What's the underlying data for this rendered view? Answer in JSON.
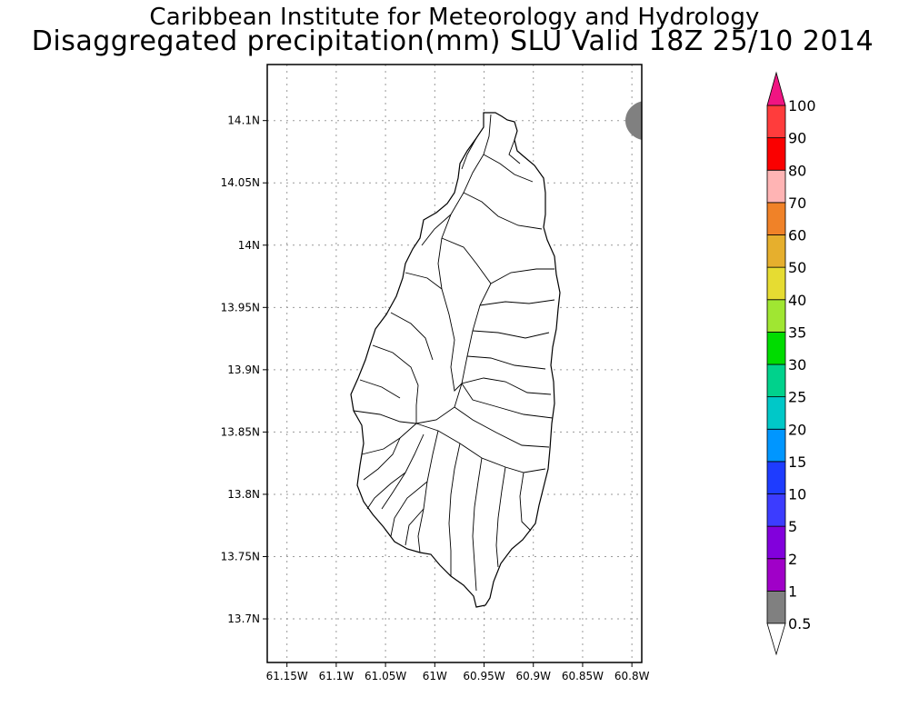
{
  "title": {
    "line1": "Caribbean Institute for Meteorology and Hydrology",
    "line2": "Disaggregated precipitation(mm) SLU Valid 18Z 25/10 2014"
  },
  "map": {
    "lon_range": [
      -61.17,
      -60.79
    ],
    "lat_range": [
      13.665,
      14.145
    ],
    "lon_ticks": [
      {
        "value": -61.15,
        "label": "61.15W"
      },
      {
        "value": -61.1,
        "label": "61.1W"
      },
      {
        "value": -61.05,
        "label": "61.05W"
      },
      {
        "value": -61.0,
        "label": "61W"
      },
      {
        "value": -60.95,
        "label": "60.95W"
      },
      {
        "value": -60.9,
        "label": "60.9W"
      },
      {
        "value": -60.85,
        "label": "60.85W"
      },
      {
        "value": -60.8,
        "label": "60.8W"
      }
    ],
    "lat_ticks": [
      {
        "value": 14.1,
        "label": "14.1N"
      },
      {
        "value": 14.05,
        "label": "14.05N"
      },
      {
        "value": 14.0,
        "label": "14N"
      },
      {
        "value": 13.95,
        "label": "13.95N"
      },
      {
        "value": 13.9,
        "label": "13.9N"
      },
      {
        "value": 13.85,
        "label": "13.85N"
      },
      {
        "value": 13.8,
        "label": "13.8N"
      },
      {
        "value": 13.75,
        "label": "13.75N"
      },
      {
        "value": 13.7,
        "label": "13.7N"
      }
    ],
    "grid": true,
    "precip_patch": {
      "lon": -60.79,
      "lat": 14.1,
      "color": "#808080",
      "category": "0.5-1"
    }
  },
  "colorbar": {
    "levels": [
      "0.5",
      "1",
      "2",
      "5",
      "10",
      "15",
      "20",
      "25",
      "30",
      "35",
      "40",
      "50",
      "60",
      "70",
      "80",
      "90",
      "100"
    ],
    "colors": [
      "#808080",
      "#a000c8",
      "#8200dc",
      "#3c3cff",
      "#1e3cff",
      "#0096ff",
      "#00c8c8",
      "#00d28c",
      "#00dc00",
      "#a0e632",
      "#e6dc32",
      "#e6af2d",
      "#f08228",
      "#ffb4b4",
      "#fa0000",
      "#ff3c3c",
      "#f01482"
    ],
    "under_color": "#ffffff",
    "over_color": "#f01482"
  }
}
